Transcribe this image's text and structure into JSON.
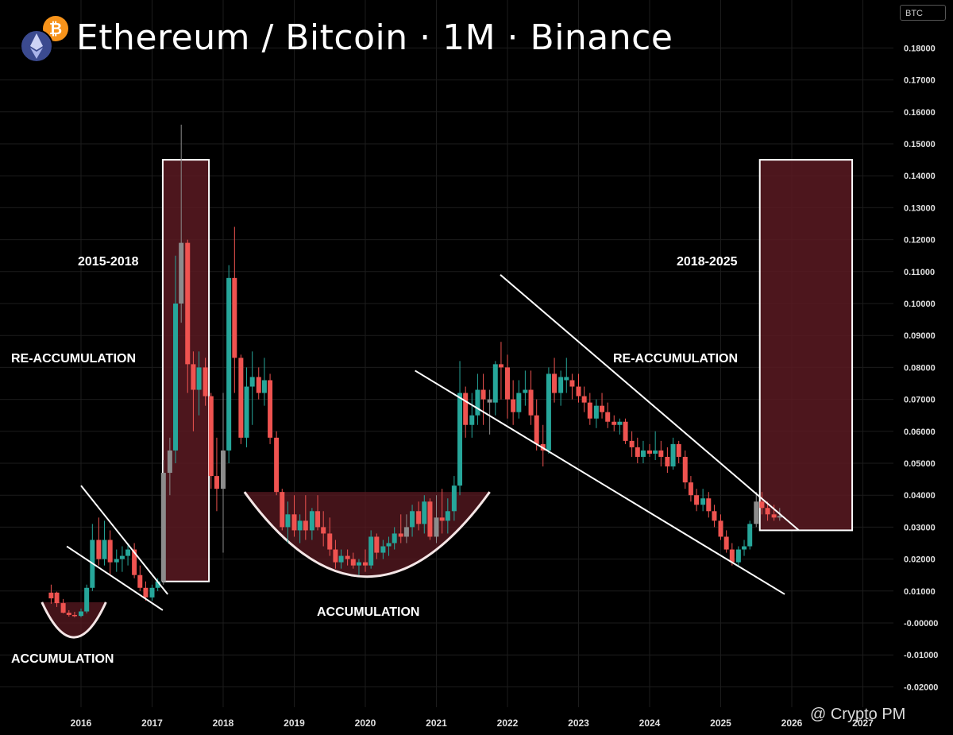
{
  "header": {
    "title": "Ethereum / Bitcoin · 1M · Binance",
    "currency_badge": "BTC"
  },
  "watermark": "@ Crypto PM",
  "colors": {
    "background": "#000000",
    "up_candle": "#26a69a",
    "down_candle": "#ef5350",
    "zone_fill": "#5a1a22",
    "line": "#ffffff",
    "muted_candle": "#8c8c8c"
  },
  "chart_data": {
    "type": "candlestick",
    "title": "Ethereum / Bitcoin · 1M · Binance",
    "timeframe": "1M",
    "exchange": "Binance",
    "x_ticks": [
      "2016",
      "2017",
      "2018",
      "2019",
      "2020",
      "2021",
      "2022",
      "2023",
      "2024",
      "2025",
      "2026",
      "2027"
    ],
    "y_ticks": [
      "0.18000",
      "0.17000",
      "0.16000",
      "0.15000",
      "0.14000",
      "0.13000",
      "0.12000",
      "0.11000",
      "0.10000",
      "0.09000",
      "0.08000",
      "0.07000",
      "0.06000",
      "0.05000",
      "0.04000",
      "0.03000",
      "0.02000",
      "0.01000",
      "-0.00000",
      "-0.01000",
      "-0.02000"
    ],
    "ylim": [
      -0.02,
      0.18
    ],
    "xlim": [
      2015.4,
      2027.3
    ],
    "y_axis_position": "right",
    "grid": true,
    "candles": [
      [
        2015.58,
        0.0077,
        0.012,
        0.006,
        0.0095,
        "down"
      ],
      [
        2015.66,
        0.0095,
        0.0098,
        0.005,
        0.0062,
        "down"
      ],
      [
        2015.75,
        0.0062,
        0.0075,
        0.003,
        0.0032,
        "down"
      ],
      [
        2015.83,
        0.0032,
        0.004,
        0.002,
        0.0025,
        "down"
      ],
      [
        2015.91,
        0.0025,
        0.0035,
        0.0018,
        0.0022,
        "down"
      ],
      [
        2016.0,
        0.0022,
        0.0045,
        0.0018,
        0.0036,
        "up"
      ],
      [
        2016.08,
        0.0036,
        0.012,
        0.003,
        0.011,
        "up"
      ],
      [
        2016.16,
        0.011,
        0.031,
        0.01,
        0.026,
        "up"
      ],
      [
        2016.25,
        0.026,
        0.033,
        0.018,
        0.02,
        "down"
      ],
      [
        2016.33,
        0.02,
        0.032,
        0.018,
        0.026,
        "up"
      ],
      [
        2016.41,
        0.026,
        0.029,
        0.015,
        0.019,
        "down"
      ],
      [
        2016.5,
        0.019,
        0.023,
        0.016,
        0.02,
        "up"
      ],
      [
        2016.58,
        0.02,
        0.024,
        0.016,
        0.021,
        "up"
      ],
      [
        2016.66,
        0.021,
        0.025,
        0.018,
        0.023,
        "up"
      ],
      [
        2016.75,
        0.023,
        0.025,
        0.014,
        0.015,
        "down"
      ],
      [
        2016.83,
        0.015,
        0.018,
        0.01,
        0.011,
        "down"
      ],
      [
        2016.91,
        0.011,
        0.013,
        0.007,
        0.008,
        "down"
      ],
      [
        2017.0,
        0.008,
        0.012,
        0.007,
        0.011,
        "up"
      ],
      [
        2017.08,
        0.011,
        0.014,
        0.01,
        0.013,
        "up"
      ],
      [
        2017.16,
        0.013,
        0.051,
        0.012,
        0.047,
        "muted"
      ],
      [
        2017.25,
        0.047,
        0.058,
        0.04,
        0.054,
        "muted"
      ],
      [
        2017.33,
        0.054,
        0.115,
        0.05,
        0.1,
        "up"
      ],
      [
        2017.41,
        0.1,
        0.156,
        0.094,
        0.119,
        "muted"
      ],
      [
        2017.5,
        0.119,
        0.12,
        0.072,
        0.081,
        "down"
      ],
      [
        2017.58,
        0.081,
        0.085,
        0.06,
        0.073,
        "down"
      ],
      [
        2017.66,
        0.073,
        0.085,
        0.065,
        0.08,
        "up"
      ],
      [
        2017.75,
        0.08,
        0.083,
        0.068,
        0.071,
        "down"
      ],
      [
        2017.83,
        0.071,
        0.072,
        0.042,
        0.046,
        "down"
      ],
      [
        2017.91,
        0.046,
        0.058,
        0.035,
        0.042,
        "down"
      ],
      [
        2018.0,
        0.042,
        0.072,
        0.022,
        0.054,
        "muted"
      ],
      [
        2018.08,
        0.054,
        0.112,
        0.05,
        0.108,
        "up"
      ],
      [
        2018.16,
        0.108,
        0.124,
        0.072,
        0.083,
        "down"
      ],
      [
        2018.25,
        0.083,
        0.084,
        0.056,
        0.058,
        "down"
      ],
      [
        2018.33,
        0.058,
        0.08,
        0.055,
        0.074,
        "up"
      ],
      [
        2018.41,
        0.074,
        0.085,
        0.062,
        0.077,
        "up"
      ],
      [
        2018.5,
        0.077,
        0.08,
        0.07,
        0.072,
        "down"
      ],
      [
        2018.58,
        0.072,
        0.083,
        0.068,
        0.076,
        "up"
      ],
      [
        2018.66,
        0.076,
        0.078,
        0.056,
        0.058,
        "down"
      ],
      [
        2018.75,
        0.058,
        0.06,
        0.04,
        0.041,
        "down"
      ],
      [
        2018.83,
        0.041,
        0.042,
        0.029,
        0.03,
        "down"
      ],
      [
        2018.91,
        0.03,
        0.038,
        0.025,
        0.034,
        "up"
      ],
      [
        2019.0,
        0.034,
        0.04,
        0.027,
        0.029,
        "down"
      ],
      [
        2019.08,
        0.029,
        0.034,
        0.025,
        0.032,
        "up"
      ],
      [
        2019.16,
        0.032,
        0.04,
        0.026,
        0.029,
        "down"
      ],
      [
        2019.25,
        0.029,
        0.036,
        0.026,
        0.035,
        "up"
      ],
      [
        2019.33,
        0.035,
        0.04,
        0.029,
        0.03,
        "down"
      ],
      [
        2019.41,
        0.03,
        0.035,
        0.024,
        0.028,
        "down"
      ],
      [
        2019.5,
        0.028,
        0.033,
        0.021,
        0.023,
        "down"
      ],
      [
        2019.58,
        0.023,
        0.026,
        0.017,
        0.019,
        "down"
      ],
      [
        2019.66,
        0.019,
        0.023,
        0.017,
        0.021,
        "up"
      ],
      [
        2019.75,
        0.021,
        0.023,
        0.018,
        0.02,
        "down"
      ],
      [
        2019.83,
        0.02,
        0.022,
        0.017,
        0.018,
        "down"
      ],
      [
        2019.91,
        0.018,
        0.02,
        0.015,
        0.019,
        "up"
      ],
      [
        2020.0,
        0.019,
        0.023,
        0.016,
        0.018,
        "down"
      ],
      [
        2020.08,
        0.018,
        0.029,
        0.017,
        0.027,
        "up"
      ],
      [
        2020.16,
        0.027,
        0.028,
        0.02,
        0.022,
        "down"
      ],
      [
        2020.25,
        0.022,
        0.026,
        0.02,
        0.024,
        "up"
      ],
      [
        2020.33,
        0.024,
        0.027,
        0.021,
        0.025,
        "up"
      ],
      [
        2020.41,
        0.025,
        0.03,
        0.023,
        0.028,
        "up"
      ],
      [
        2020.5,
        0.028,
        0.034,
        0.025,
        0.027,
        "down"
      ],
      [
        2020.58,
        0.027,
        0.034,
        0.025,
        0.03,
        "muted"
      ],
      [
        2020.66,
        0.03,
        0.037,
        0.027,
        0.035,
        "up"
      ],
      [
        2020.75,
        0.035,
        0.038,
        0.029,
        0.031,
        "down"
      ],
      [
        2020.83,
        0.031,
        0.04,
        0.028,
        0.038,
        "up"
      ],
      [
        2020.91,
        0.038,
        0.039,
        0.026,
        0.027,
        "down"
      ],
      [
        2021.0,
        0.027,
        0.04,
        0.025,
        0.033,
        "muted"
      ],
      [
        2021.08,
        0.033,
        0.042,
        0.028,
        0.032,
        "down"
      ],
      [
        2021.16,
        0.032,
        0.039,
        0.028,
        0.035,
        "up"
      ],
      [
        2021.25,
        0.035,
        0.046,
        0.032,
        0.043,
        "up"
      ],
      [
        2021.33,
        0.043,
        0.082,
        0.04,
        0.072,
        "up"
      ],
      [
        2021.41,
        0.072,
        0.074,
        0.058,
        0.062,
        "down"
      ],
      [
        2021.5,
        0.062,
        0.072,
        0.058,
        0.065,
        "up"
      ],
      [
        2021.58,
        0.065,
        0.078,
        0.062,
        0.073,
        "up"
      ],
      [
        2021.66,
        0.073,
        0.078,
        0.062,
        0.07,
        "down"
      ],
      [
        2021.75,
        0.07,
        0.073,
        0.059,
        0.069,
        "muted"
      ],
      [
        2021.83,
        0.069,
        0.082,
        0.065,
        0.081,
        "up"
      ],
      [
        2021.91,
        0.081,
        0.088,
        0.07,
        0.08,
        "down"
      ],
      [
        2022.0,
        0.08,
        0.084,
        0.064,
        0.07,
        "down"
      ],
      [
        2022.08,
        0.07,
        0.076,
        0.062,
        0.066,
        "down"
      ],
      [
        2022.16,
        0.066,
        0.076,
        0.064,
        0.072,
        "up"
      ],
      [
        2022.25,
        0.072,
        0.079,
        0.068,
        0.073,
        "up"
      ],
      [
        2022.33,
        0.073,
        0.079,
        0.062,
        0.065,
        "down"
      ],
      [
        2022.41,
        0.065,
        0.07,
        0.054,
        0.056,
        "down"
      ],
      [
        2022.5,
        0.056,
        0.062,
        0.049,
        0.054,
        "down"
      ],
      [
        2022.58,
        0.054,
        0.08,
        0.053,
        0.078,
        "up"
      ],
      [
        2022.66,
        0.078,
        0.083,
        0.069,
        0.072,
        "down"
      ],
      [
        2022.75,
        0.072,
        0.079,
        0.068,
        0.077,
        "up"
      ],
      [
        2022.83,
        0.077,
        0.083,
        0.072,
        0.076,
        "up"
      ],
      [
        2022.91,
        0.076,
        0.078,
        0.07,
        0.074,
        "down"
      ],
      [
        2023.0,
        0.074,
        0.078,
        0.069,
        0.071,
        "down"
      ],
      [
        2023.08,
        0.071,
        0.074,
        0.066,
        0.069,
        "down"
      ],
      [
        2023.16,
        0.069,
        0.072,
        0.062,
        0.064,
        "down"
      ],
      [
        2023.25,
        0.064,
        0.07,
        0.061,
        0.068,
        "up"
      ],
      [
        2023.33,
        0.068,
        0.072,
        0.064,
        0.066,
        "down"
      ],
      [
        2023.41,
        0.066,
        0.069,
        0.061,
        0.063,
        "down"
      ],
      [
        2023.5,
        0.063,
        0.065,
        0.06,
        0.062,
        "down"
      ],
      [
        2023.58,
        0.062,
        0.064,
        0.059,
        0.063,
        "up"
      ],
      [
        2023.66,
        0.063,
        0.064,
        0.056,
        0.057,
        "down"
      ],
      [
        2023.75,
        0.057,
        0.06,
        0.052,
        0.055,
        "down"
      ],
      [
        2023.83,
        0.055,
        0.058,
        0.05,
        0.052,
        "down"
      ],
      [
        2023.91,
        0.052,
        0.057,
        0.05,
        0.054,
        "up"
      ],
      [
        2024.0,
        0.054,
        0.056,
        0.052,
        0.053,
        "down"
      ],
      [
        2024.08,
        0.053,
        0.06,
        0.051,
        0.054,
        "up"
      ],
      [
        2024.16,
        0.054,
        0.057,
        0.049,
        0.052,
        "down"
      ],
      [
        2024.25,
        0.052,
        0.055,
        0.047,
        0.049,
        "down"
      ],
      [
        2024.33,
        0.049,
        0.058,
        0.048,
        0.056,
        "up"
      ],
      [
        2024.41,
        0.056,
        0.057,
        0.05,
        0.052,
        "down"
      ],
      [
        2024.5,
        0.052,
        0.054,
        0.042,
        0.044,
        "down"
      ],
      [
        2024.58,
        0.044,
        0.046,
        0.038,
        0.04,
        "down"
      ],
      [
        2024.66,
        0.04,
        0.042,
        0.035,
        0.037,
        "down"
      ],
      [
        2024.75,
        0.037,
        0.042,
        0.035,
        0.039,
        "up"
      ],
      [
        2024.83,
        0.039,
        0.041,
        0.033,
        0.035,
        "down"
      ],
      [
        2024.91,
        0.035,
        0.037,
        0.03,
        0.032,
        "down"
      ],
      [
        2025.0,
        0.032,
        0.034,
        0.026,
        0.027,
        "down"
      ],
      [
        2025.08,
        0.027,
        0.029,
        0.022,
        0.023,
        "down"
      ],
      [
        2025.16,
        0.023,
        0.025,
        0.018,
        0.019,
        "down"
      ],
      [
        2025.25,
        0.019,
        0.024,
        0.018,
        0.023,
        "up"
      ],
      [
        2025.33,
        0.023,
        0.026,
        0.021,
        0.024,
        "up"
      ],
      [
        2025.41,
        0.024,
        0.032,
        0.023,
        0.031,
        "up"
      ],
      [
        2025.5,
        0.031,
        0.041,
        0.03,
        0.038,
        "muted"
      ],
      [
        2025.58,
        0.038,
        0.041,
        0.034,
        0.036,
        "down"
      ],
      [
        2025.66,
        0.036,
        0.038,
        0.032,
        0.034,
        "down"
      ],
      [
        2025.75,
        0.034,
        0.037,
        0.032,
        0.033,
        "down"
      ],
      [
        2025.83,
        0.033,
        0.036,
        0.032,
        0.0335,
        "muted"
      ]
    ],
    "zones": [
      {
        "x0": 2017.15,
        "x1": 2017.8,
        "y0": 0.013,
        "y1": 0.145
      },
      {
        "x0": 2025.55,
        "x1": 2026.85,
        "y0": 0.029,
        "y1": 0.145
      }
    ],
    "bowls": [
      {
        "x0": 2015.45,
        "x1": 2016.35,
        "y_top": 0.0065,
        "y_bottom": -0.0045
      },
      {
        "x0": 2018.3,
        "x1": 2021.75,
        "y_top": 0.041,
        "y_bottom": 0.0145
      }
    ],
    "trendlines": [
      {
        "p1": [
          2016.0,
          0.043
        ],
        "p2": [
          2017.22,
          0.009
        ]
      },
      {
        "p1": [
          2015.8,
          0.024
        ],
        "p2": [
          2017.15,
          0.004
        ]
      },
      {
        "p1": [
          2021.9,
          0.109
        ],
        "p2": [
          2026.1,
          0.029
        ]
      },
      {
        "p1": [
          2020.7,
          0.079
        ],
        "p2": [
          2025.9,
          0.009
        ]
      }
    ],
    "annotations": [
      {
        "id": "accumulation-1",
        "text": "ACCUMULATION"
      },
      {
        "id": "reaccumulation-1",
        "text": "RE-ACCUMULATION"
      },
      {
        "id": "period-1",
        "text": "2015-2018"
      },
      {
        "id": "accumulation-2",
        "text": "ACCUMULATION"
      },
      {
        "id": "period-2",
        "text": "2018-2025"
      },
      {
        "id": "reaccumulation-2",
        "text": "RE-ACCUMULATION"
      }
    ]
  }
}
